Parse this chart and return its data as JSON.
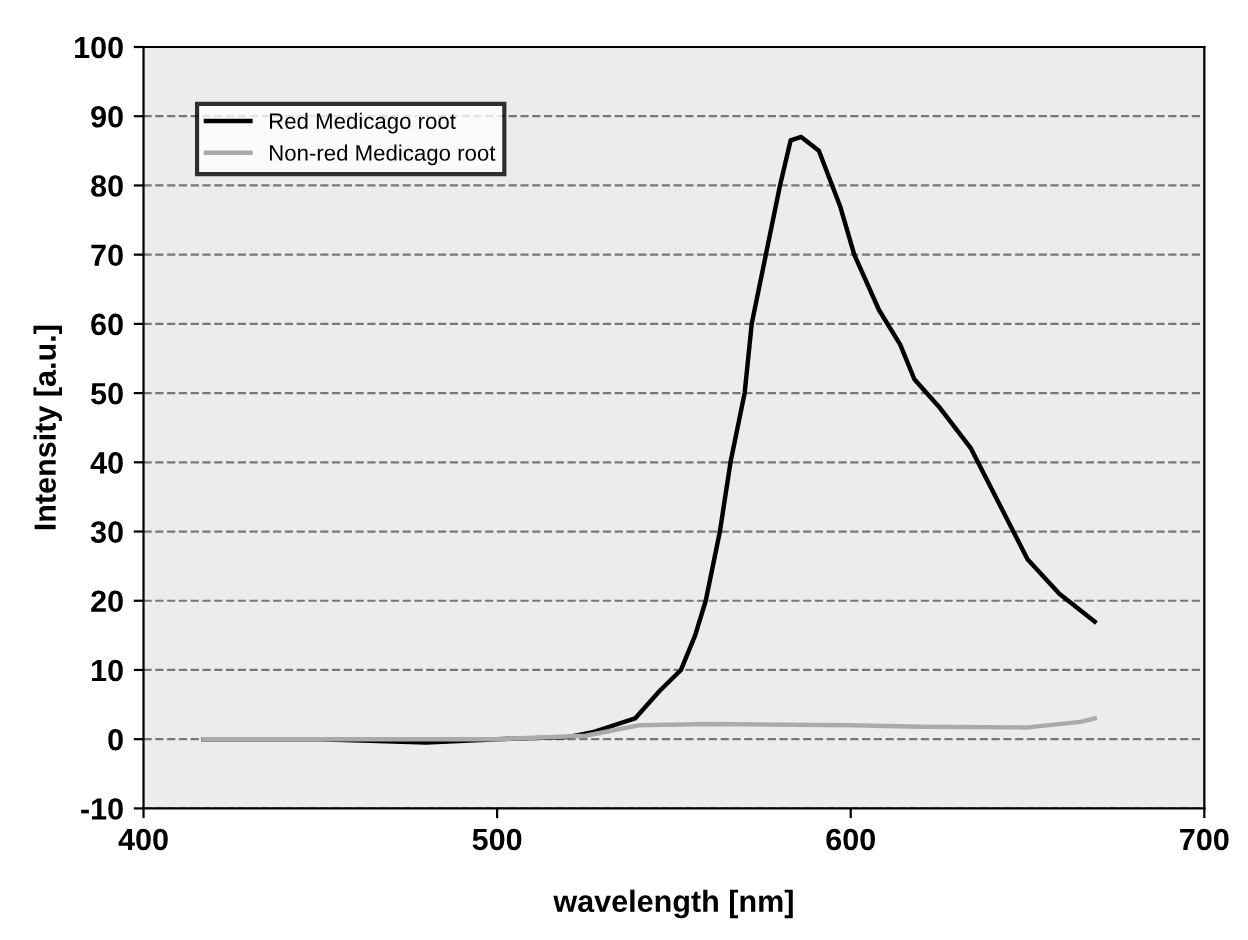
{
  "chart_data": {
    "type": "line",
    "xlabel": "wavelength [nm]",
    "ylabel": "Intensity [a.u.]",
    "xlim": [
      400,
      700
    ],
    "xticks": [
      400,
      500,
      600,
      700
    ],
    "ylim": [
      -10,
      100
    ],
    "yticks": [
      -10,
      0,
      10,
      20,
      30,
      40,
      50,
      60,
      70,
      80,
      90,
      100
    ],
    "grid": "y",
    "legend": "top left",
    "line_style": "solid",
    "marker": "none",
    "series": [
      {
        "name": "Red Medicago root",
        "color": "#000000",
        "x": [
          417,
          450,
          480,
          500,
          520,
          527,
          539,
          546,
          552,
          556,
          559,
          563,
          566,
          570,
          572,
          576,
          580,
          583,
          586,
          591,
          597,
          601,
          608,
          614,
          618,
          625,
          634,
          643,
          650,
          659,
          669
        ],
        "values": [
          0,
          0,
          -0.5,
          0,
          0.3,
          1,
          3,
          7,
          10,
          15,
          20,
          30,
          40,
          50,
          60,
          70,
          80,
          86.5,
          87,
          85,
          77,
          70,
          62,
          57,
          52,
          48,
          42,
          33,
          26,
          21,
          17
        ]
      },
      {
        "name": "Non-red Medicago root",
        "color": "#aaaaaa",
        "x": [
          417,
          450,
          500,
          525,
          540,
          560,
          600,
          620,
          650,
          665,
          669
        ],
        "values": [
          0,
          0,
          0,
          0.5,
          2,
          2.2,
          2,
          1.8,
          1.7,
          2.5,
          3
        ]
      }
    ]
  }
}
